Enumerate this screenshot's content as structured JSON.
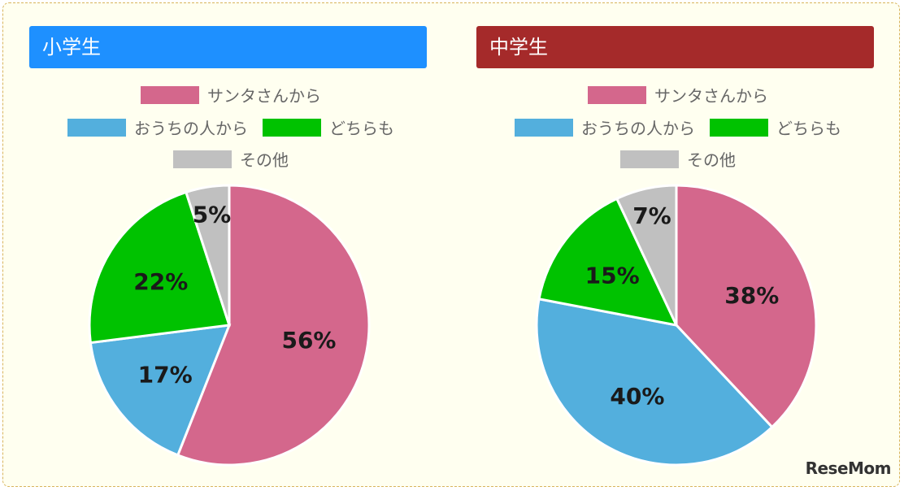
{
  "chart_data": [
    {
      "type": "pie",
      "title": "小学生",
      "header_color": "#1e90ff",
      "legend": [
        {
          "label": "サンタさんから",
          "color": "#d4678c"
        },
        {
          "label": "おうちの人から",
          "color": "#53afdd"
        },
        {
          "label": "どちらも",
          "color": "#00c200"
        },
        {
          "label": "その他",
          "color": "#c0c0c0"
        }
      ],
      "values": [
        56,
        17,
        22,
        5
      ],
      "data_labels": [
        "56%",
        "17%",
        "22%",
        "5%"
      ]
    },
    {
      "type": "pie",
      "title": "中学生",
      "header_color": "#a52a2a",
      "legend": [
        {
          "label": "サンタさんから",
          "color": "#d4678c"
        },
        {
          "label": "おうちの人から",
          "color": "#53afdd"
        },
        {
          "label": "どちらも",
          "color": "#00c200"
        },
        {
          "label": "その他",
          "color": "#c0c0c0"
        }
      ],
      "values": [
        38,
        40,
        15,
        7
      ],
      "data_labels": [
        "38%",
        "40%",
        "15%",
        "7%"
      ]
    }
  ],
  "watermark": "ReseMom"
}
